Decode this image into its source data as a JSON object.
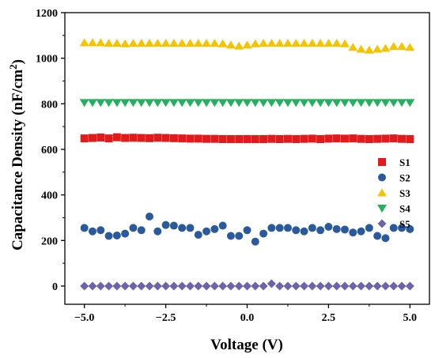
{
  "chart_data": {
    "type": "scatter",
    "xlabel": "Voltage (V)",
    "ylabel": "Capacitance Density (nF/cm²)",
    "ylabel_main": "Capacitance Density (nF/cm",
    "ylabel_sup": "2",
    "ylabel_end": ")",
    "xlim": [
      -5.6,
      5.6
    ],
    "ylim": [
      -80,
      1200
    ],
    "xticks": [
      -5.0,
      -2.5,
      0.0,
      2.5,
      5.0
    ],
    "xtick_labels": [
      "−5.0",
      "−2.5",
      "0.0",
      "2.5",
      "5.0"
    ],
    "yticks": [
      0,
      200,
      400,
      600,
      800,
      1000,
      1200
    ],
    "ytick_labels": [
      "0",
      "200",
      "400",
      "600",
      "800",
      "1000",
      "1200"
    ],
    "grid": false,
    "legend_position": "right",
    "x": [
      -5.0,
      -4.75,
      -4.5,
      -4.25,
      -4.0,
      -3.75,
      -3.5,
      -3.25,
      -3.0,
      -2.75,
      -2.5,
      -2.25,
      -2.0,
      -1.75,
      -1.5,
      -1.25,
      -1.0,
      -0.75,
      -0.5,
      -0.25,
      0.0,
      0.25,
      0.5,
      0.75,
      1.0,
      1.25,
      1.5,
      1.75,
      2.0,
      2.25,
      2.5,
      2.75,
      3.0,
      3.25,
      3.5,
      3.75,
      4.0,
      4.25,
      4.5,
      4.75,
      5.0
    ],
    "series": [
      {
        "name": "S1",
        "marker": "square",
        "color": "#e31a1c",
        "values": [
          648,
          650,
          652,
          648,
          653,
          650,
          651,
          650,
          649,
          651,
          650,
          649,
          648,
          647,
          647,
          646,
          646,
          645,
          645,
          645,
          645,
          645,
          645,
          646,
          645,
          646,
          645,
          646,
          647,
          645,
          647,
          648,
          647,
          648,
          646,
          645,
          646,
          647,
          648,
          646,
          645
        ]
      },
      {
        "name": "S2",
        "marker": "circle",
        "color": "#2a5a9c",
        "values": [
          255,
          240,
          245,
          220,
          222,
          230,
          255,
          245,
          305,
          240,
          268,
          265,
          255,
          255,
          225,
          240,
          250,
          265,
          220,
          220,
          245,
          195,
          230,
          255,
          255,
          255,
          245,
          240,
          255,
          245,
          260,
          250,
          248,
          235,
          240,
          255,
          220,
          210,
          255,
          255,
          250
        ]
      },
      {
        "name": "S3",
        "marker": "triangle-up",
        "color": "#f4c400",
        "values": [
          1068,
          1068,
          1068,
          1066,
          1066,
          1064,
          1066,
          1066,
          1066,
          1066,
          1066,
          1066,
          1066,
          1066,
          1066,
          1066,
          1066,
          1064,
          1058,
          1054,
          1058,
          1064,
          1066,
          1066,
          1066,
          1066,
          1066,
          1066,
          1066,
          1066,
          1066,
          1066,
          1064,
          1048,
          1040,
          1036,
          1040,
          1044,
          1052,
          1052,
          1048
        ]
      },
      {
        "name": "S4",
        "marker": "triangle-down",
        "color": "#22b25e",
        "values": [
          805,
          805,
          805,
          805,
          805,
          805,
          805,
          805,
          805,
          805,
          805,
          805,
          805,
          805,
          805,
          805,
          805,
          805,
          805,
          805,
          805,
          805,
          805,
          805,
          805,
          805,
          805,
          805,
          805,
          805,
          805,
          805,
          805,
          805,
          805,
          805,
          805,
          805,
          805,
          805,
          805
        ]
      },
      {
        "name": "S5",
        "marker": "diamond",
        "color": "#6b64a8",
        "values": [
          0,
          0,
          0,
          0,
          0,
          0,
          0,
          0,
          0,
          0,
          0,
          0,
          0,
          0,
          0,
          0,
          0,
          0,
          0,
          0,
          0,
          0,
          0,
          10,
          0,
          0,
          0,
          0,
          0,
          0,
          0,
          0,
          0,
          0,
          0,
          0,
          0,
          0,
          0,
          0,
          0
        ]
      }
    ]
  }
}
